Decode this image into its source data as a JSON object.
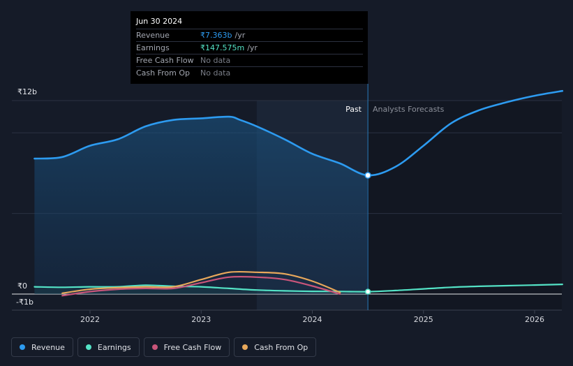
{
  "tooltip": {
    "date": "Jun 30 2024",
    "rows": [
      {
        "label": "Revenue",
        "value": "₹7.363b",
        "unit": "/yr",
        "color": "#2d9bf0"
      },
      {
        "label": "Earnings",
        "value": "₹147.575m",
        "unit": "/yr",
        "color": "#54e3c6"
      },
      {
        "label": "Free Cash Flow",
        "value": "No data",
        "unit": "",
        "color": "#6b6f78"
      },
      {
        "label": "Cash From Op",
        "value": "No data",
        "unit": "",
        "color": "#6b6f78"
      }
    ]
  },
  "sections": {
    "past": "Past",
    "forecast": "Analysts Forecasts"
  },
  "legend": [
    {
      "label": "Revenue",
      "color": "#2d9bf0"
    },
    {
      "label": "Earnings",
      "color": "#54e3c6"
    },
    {
      "label": "Free Cash Flow",
      "color": "#c9557a"
    },
    {
      "label": "Cash From Op",
      "color": "#e8a85b"
    }
  ],
  "chart_data": {
    "type": "line",
    "title": "",
    "xlabel": "",
    "ylabel": "",
    "unit": "₹ billions",
    "xlim": [
      2021.5,
      2026.25
    ],
    "ylim": [
      -1,
      12
    ],
    "y_tick_labels": [
      {
        "value": 12,
        "label": "₹12b"
      },
      {
        "value": 0,
        "label": "₹0"
      },
      {
        "value": -1,
        "label": "-₹1b"
      }
    ],
    "x_ticks": [
      2022,
      2023,
      2024,
      2025,
      2026
    ],
    "x_tick_labels": [
      "2022",
      "2023",
      "2024",
      "2025",
      "2026"
    ],
    "highlight_range": [
      2023.5,
      2024.5
    ],
    "divider_x": 2024.5,
    "highlight_point": {
      "series": "Revenue",
      "x": 2024.5,
      "y": 7.363
    },
    "series": [
      {
        "name": "Revenue",
        "color": "#2d9bf0",
        "x": [
          2021.5,
          2021.75,
          2022.0,
          2022.25,
          2022.5,
          2022.75,
          2023.0,
          2023.25,
          2023.35,
          2023.5,
          2023.75,
          2024.0,
          2024.25,
          2024.5,
          2024.75,
          2025.0,
          2025.25,
          2025.5,
          2025.75,
          2026.0,
          2026.25
        ],
        "y": [
          8.4,
          8.5,
          9.2,
          9.6,
          10.4,
          10.8,
          10.9,
          11.0,
          10.8,
          10.4,
          9.6,
          8.7,
          8.1,
          7.363,
          7.9,
          9.2,
          10.6,
          11.4,
          11.9,
          12.3,
          12.6
        ]
      },
      {
        "name": "Earnings",
        "color": "#54e3c6",
        "x": [
          2021.5,
          2021.75,
          2022.0,
          2022.25,
          2022.5,
          2022.75,
          2023.0,
          2023.25,
          2023.5,
          2023.75,
          2024.0,
          2024.25,
          2024.5,
          2024.75,
          2025.0,
          2025.25,
          2025.5,
          2025.75,
          2026.0,
          2026.25
        ],
        "y": [
          0.45,
          0.42,
          0.45,
          0.45,
          0.55,
          0.48,
          0.45,
          0.35,
          0.25,
          0.2,
          0.17,
          0.16,
          0.148,
          0.22,
          0.32,
          0.42,
          0.48,
          0.52,
          0.56,
          0.6
        ]
      },
      {
        "name": "Free Cash Flow",
        "color": "#c9557a",
        "x": [
          2021.75,
          2022.0,
          2022.25,
          2022.5,
          2022.75,
          2023.0,
          2023.25,
          2023.5,
          2023.75,
          2024.0,
          2024.25
        ],
        "y": [
          -0.1,
          0.15,
          0.3,
          0.35,
          0.35,
          0.7,
          1.05,
          1.05,
          0.9,
          0.5,
          0.0
        ]
      },
      {
        "name": "Cash From Op",
        "color": "#e8a85b",
        "x": [
          2021.75,
          2022.0,
          2022.25,
          2022.5,
          2022.75,
          2023.0,
          2023.25,
          2023.5,
          2023.75,
          2024.0,
          2024.25
        ],
        "y": [
          0.05,
          0.3,
          0.4,
          0.45,
          0.45,
          0.9,
          1.35,
          1.35,
          1.25,
          0.8,
          0.1
        ]
      }
    ]
  }
}
